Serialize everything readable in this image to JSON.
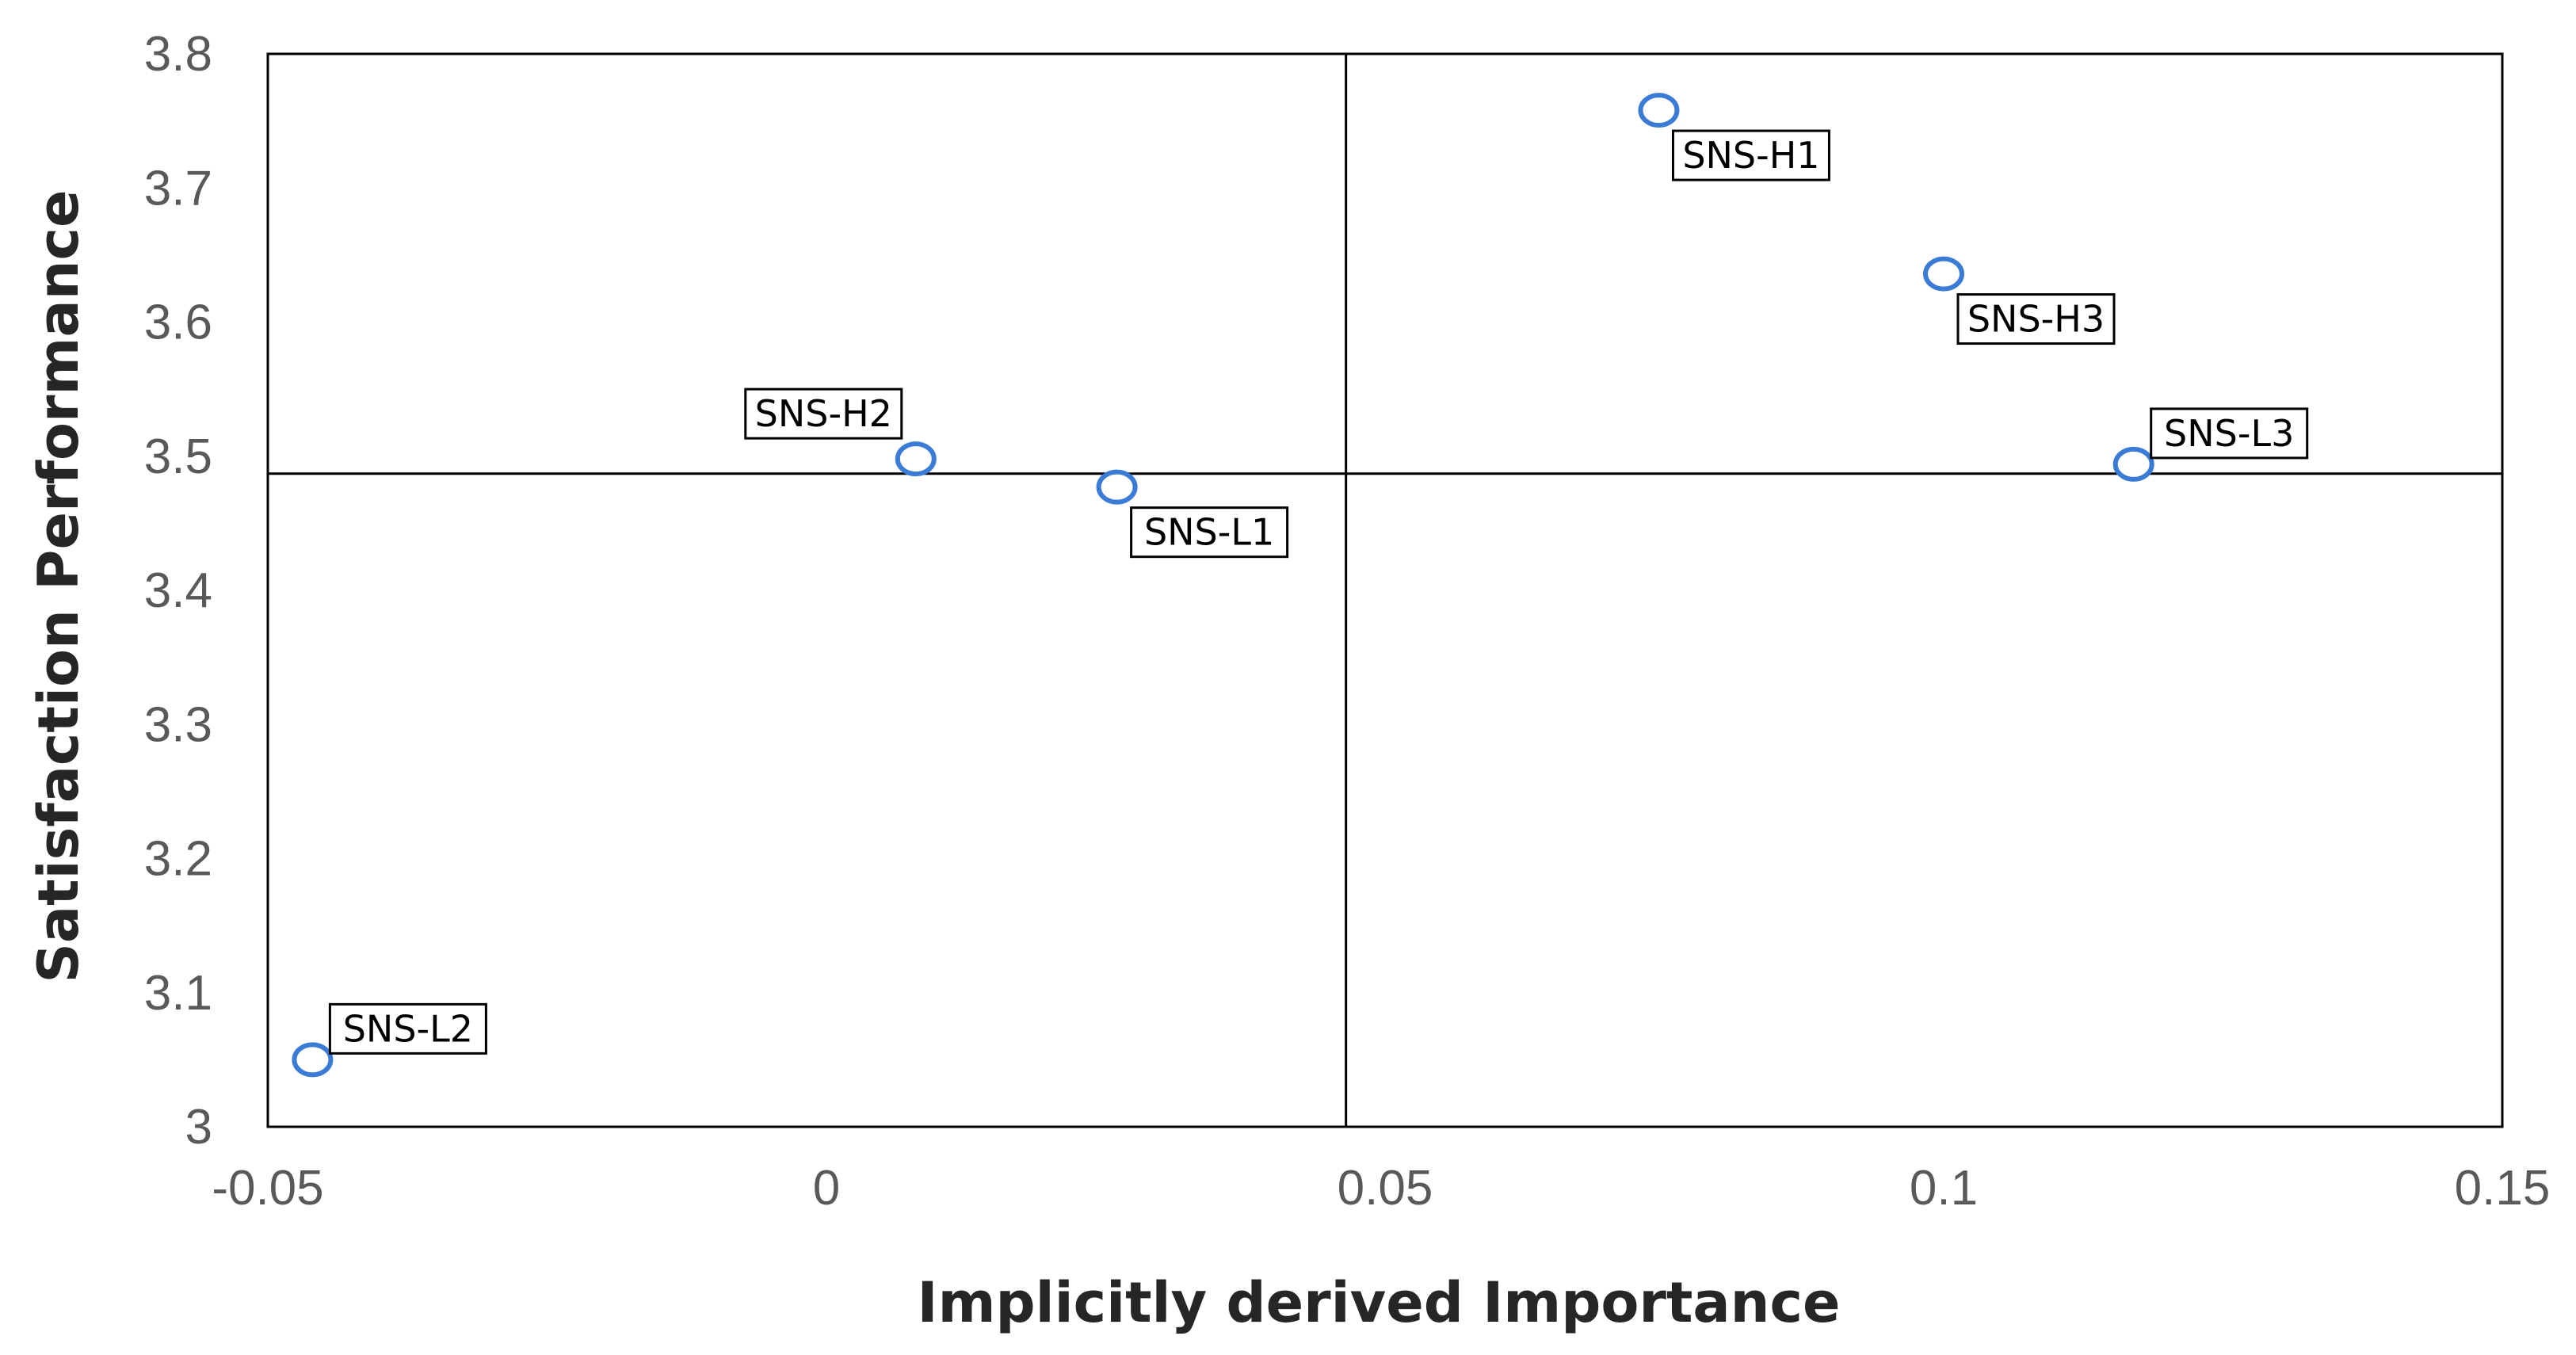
{
  "chart_data": {
    "type": "scatter",
    "title": "",
    "xlabel": "Implicitly derived Importance",
    "ylabel": "Satisfaction Performance",
    "xlim": [
      -0.05,
      0.15
    ],
    "ylim": [
      3.0,
      3.8
    ],
    "xticks": [
      -0.05,
      0,
      0.05,
      0.1,
      0.15
    ],
    "xtick_labels": [
      "-0.05",
      "0",
      "0.05",
      "0.1",
      "0.15"
    ],
    "yticks": [
      3.0,
      3.1,
      3.2,
      3.3,
      3.4,
      3.5,
      3.6,
      3.7,
      3.8
    ],
    "ytick_labels": [
      "3",
      "3.1",
      "3.2",
      "3.3",
      "3.4",
      "3.5",
      "3.6",
      "3.7",
      "3.8"
    ],
    "grid": false,
    "legend": "none",
    "reference_lines": {
      "vertical_x": 0.0465,
      "horizontal_y": 3.487
    },
    "marker_color": "#3a7bd5",
    "points": [
      {
        "label": "SNS-H1",
        "x": 0.0745,
        "y": 3.758,
        "label_pos": "below-right"
      },
      {
        "label": "SNS-H3",
        "x": 0.1,
        "y": 3.636,
        "label_pos": "below-right"
      },
      {
        "label": "SNS-L3",
        "x": 0.117,
        "y": 3.494,
        "label_pos": "above-right"
      },
      {
        "label": "SNS-H2",
        "x": 0.008,
        "y": 3.498,
        "label_pos": "above-left"
      },
      {
        "label": "SNS-L1",
        "x": 0.026,
        "y": 3.477,
        "label_pos": "below-right"
      },
      {
        "label": "SNS-L2",
        "x": -0.046,
        "y": 3.05,
        "label_pos": "above-right"
      }
    ]
  }
}
